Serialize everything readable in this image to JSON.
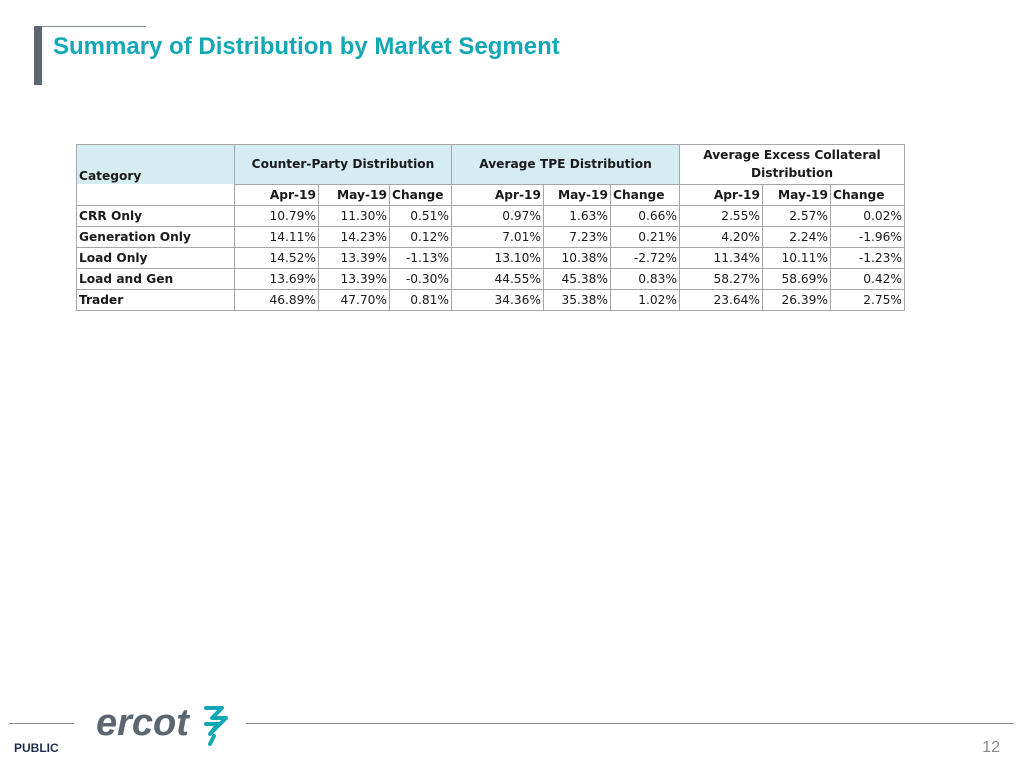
{
  "slide": {
    "title": "Summary of Distribution by Market Segment",
    "footer_label": "PUBLIC",
    "page_number": "12",
    "brand_text": "ercot",
    "colors": {
      "title": "#13a8b6",
      "header_fill": "#d5ecf3",
      "logo_text": "#5b6670",
      "logo_mark": "#13a8b6"
    }
  },
  "table": {
    "category_header": "Category",
    "group_headers": [
      "Counter-Party Distribution",
      "Average TPE Distribution",
      "Average Excess Collateral Distribution"
    ],
    "sub_headers": [
      "Apr-19",
      "May-19",
      "Change"
    ],
    "rows": [
      {
        "category": "CRR Only",
        "values": [
          "10.79%",
          "11.30%",
          "0.51%",
          "0.97%",
          "1.63%",
          "0.66%",
          "2.55%",
          "2.57%",
          "0.02%"
        ]
      },
      {
        "category": "Generation Only",
        "values": [
          "14.11%",
          "14.23%",
          "0.12%",
          "7.01%",
          "7.23%",
          "0.21%",
          "4.20%",
          "2.24%",
          "-1.96%"
        ]
      },
      {
        "category": "Load Only",
        "values": [
          "14.52%",
          "13.39%",
          "-1.13%",
          "13.10%",
          "10.38%",
          "-2.72%",
          "11.34%",
          "10.11%",
          "-1.23%"
        ]
      },
      {
        "category": "Load and Gen",
        "values": [
          "13.69%",
          "13.39%",
          "-0.30%",
          "44.55%",
          "45.38%",
          "0.83%",
          "58.27%",
          "58.69%",
          "0.42%"
        ]
      },
      {
        "category": "Trader",
        "values": [
          "46.89%",
          "47.70%",
          "0.81%",
          "34.36%",
          "35.38%",
          "1.02%",
          "23.64%",
          "26.39%",
          "2.75%"
        ]
      }
    ]
  }
}
